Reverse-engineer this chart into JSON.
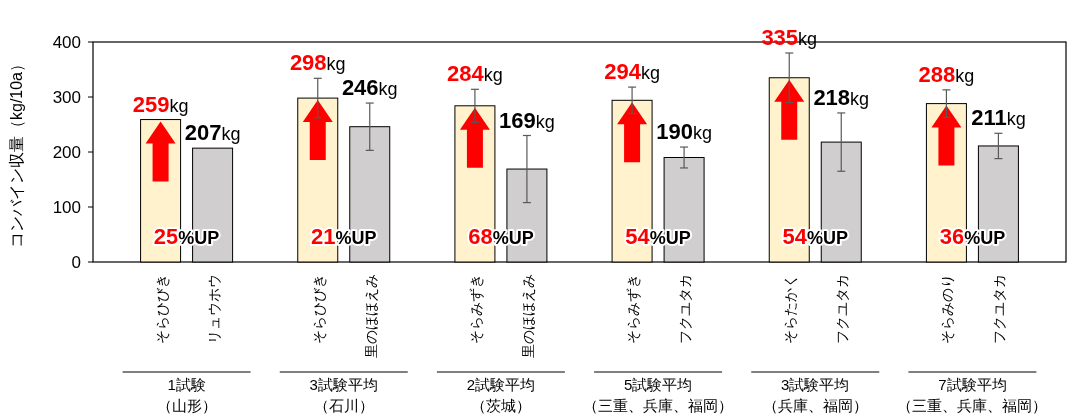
{
  "chart_data": {
    "type": "bar",
    "ylabel": "コンバイン収量（kg/10a）",
    "categories": [
      "そらひびき",
      "リュウホウ",
      "そらひびき",
      "里のほほえみ",
      "そらみずき",
      "里のほほえみ",
      "そらみずき",
      "フクユタカ",
      "そらたかく",
      "フクユタカ",
      "そらみのり",
      "フクユタカ"
    ],
    "series": [
      {
        "color": "#fff2cc",
        "values": [
          259,
          null,
          298,
          null,
          284,
          null,
          294,
          null,
          335,
          null,
          288,
          null
        ],
        "errors": [
          null,
          null,
          36,
          null,
          30,
          null,
          24,
          null,
          45,
          null,
          25,
          null
        ],
        "value_labels": [
          "259kg",
          null,
          "298kg",
          null,
          "284kg",
          null,
          "294kg",
          null,
          "335kg",
          null,
          "288kg",
          null
        ]
      },
      {
        "color": "#d0cece",
        "values": [
          null,
          207,
          null,
          246,
          null,
          169,
          null,
          190,
          null,
          218,
          null,
          211
        ],
        "errors": [
          null,
          null,
          null,
          43,
          null,
          61,
          null,
          19,
          null,
          53,
          null,
          23
        ],
        "value_labels": [
          null,
          "207kg",
          null,
          "246kg",
          null,
          "169kg",
          null,
          "190kg",
          null,
          "218kg",
          null,
          "211kg"
        ]
      }
    ],
    "ylim": [
      0,
      400
    ],
    "yticks": [
      0,
      100,
      200,
      300,
      400
    ],
    "grid": false,
    "annotations": [
      "25%UP",
      "21%UP",
      "68%UP",
      "54%UP",
      "54%UP",
      "36%UP",
      "1試験",
      "3試験平均",
      "2試験平均",
      "5試験平均",
      "3試験平均",
      "7試験平均",
      "（山形）",
      "（石川）",
      "（茨城）",
      "（三重、兵庫、福岡）",
      "（兵庫、福岡）",
      "（三重、兵庫、福岡）"
    ]
  }
}
